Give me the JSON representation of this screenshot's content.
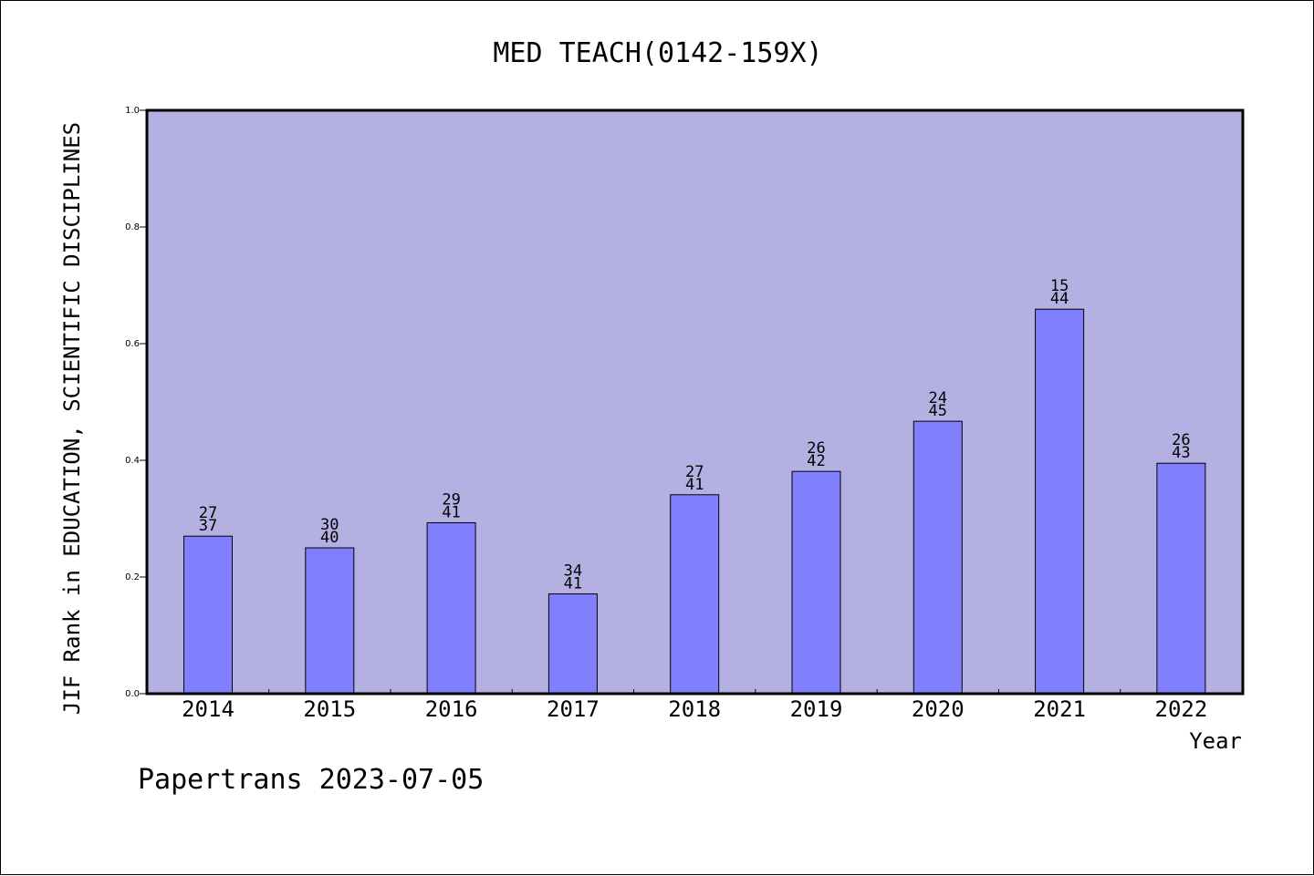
{
  "chart_data": {
    "type": "bar",
    "title": "MED TEACH(0142-159X)",
    "xlabel": "Year",
    "ylabel": "JIF Rank in EDUCATION, SCIENTIFIC DISCIPLINES",
    "categories": [
      "2014",
      "2015",
      "2016",
      "2017",
      "2018",
      "2019",
      "2020",
      "2021",
      "2022"
    ],
    "values": [
      0.27,
      0.25,
      0.293,
      0.171,
      0.341,
      0.381,
      0.467,
      0.659,
      0.395
    ],
    "bar_labels": [
      {
        "rank": "27",
        "total": "37"
      },
      {
        "rank": "30",
        "total": "40"
      },
      {
        "rank": "29",
        "total": "41"
      },
      {
        "rank": "34",
        "total": "41"
      },
      {
        "rank": "27",
        "total": "41"
      },
      {
        "rank": "26",
        "total": "42"
      },
      {
        "rank": "24",
        "total": "45"
      },
      {
        "rank": "15",
        "total": "44"
      },
      {
        "rank": "26",
        "total": "43"
      }
    ],
    "yticks": [
      "0.0",
      "0.2",
      "0.4",
      "0.6",
      "0.8",
      "1.0"
    ],
    "ylim": [
      0,
      1
    ],
    "grid": false,
    "colors": {
      "plot_background": "#b5b0e2",
      "bar_fill": "#8080ff",
      "bar_stroke": "#000000"
    }
  },
  "footer": {
    "watermark": "Papertrans 2023-07-05"
  }
}
